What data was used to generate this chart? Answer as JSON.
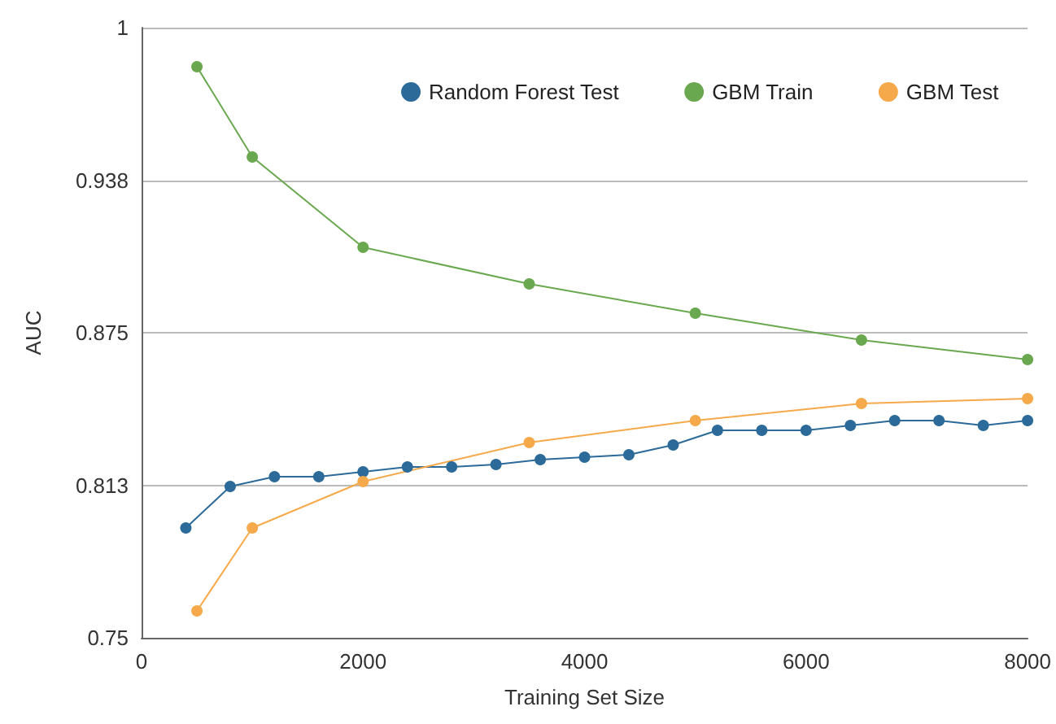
{
  "chart_data": {
    "type": "line",
    "xlabel": "Training Set Size",
    "ylabel": "AUC",
    "xlim": [
      0,
      8000
    ],
    "xticks": [
      0,
      2000,
      4000,
      6000,
      8000
    ],
    "ylim": [
      0.75,
      1
    ],
    "yticks": [
      0.75,
      {
        "value": 0.8125,
        "label": "0.813"
      },
      0.875,
      {
        "value": 0.9375,
        "label": "0.938"
      },
      1
    ],
    "grid": "y",
    "legend": "top right",
    "marker": "circle",
    "line_style": "solid",
    "series": [
      {
        "name": "Random Forest Test",
        "color": "#2b6a99",
        "x": [
          400,
          800,
          1200,
          1600,
          2000,
          2400,
          2800,
          3200,
          3600,
          4000,
          4400,
          4800,
          5200,
          5600,
          6000,
          6400,
          6800,
          7200,
          7600,
          8000
        ],
        "values": [
          0.795,
          0.812,
          0.816,
          0.816,
          0.818,
          0.82,
          0.82,
          0.821,
          0.823,
          0.824,
          0.825,
          0.829,
          0.835,
          0.835,
          0.835,
          0.837,
          0.839,
          0.839,
          0.837,
          0.839
        ]
      },
      {
        "name": "GBM Train",
        "color": "#6aa84f",
        "x": [
          500,
          1000,
          2000,
          3500,
          5000,
          6500,
          8000
        ],
        "values": [
          0.984,
          0.947,
          0.91,
          0.895,
          0.883,
          0.872,
          0.864
        ]
      },
      {
        "name": "GBM Test",
        "color": "#f6a94a",
        "x": [
          500,
          1000,
          2000,
          3500,
          5000,
          6500,
          8000
        ],
        "values": [
          0.761,
          0.795,
          0.814,
          0.83,
          0.839,
          0.846,
          0.848
        ]
      }
    ]
  }
}
